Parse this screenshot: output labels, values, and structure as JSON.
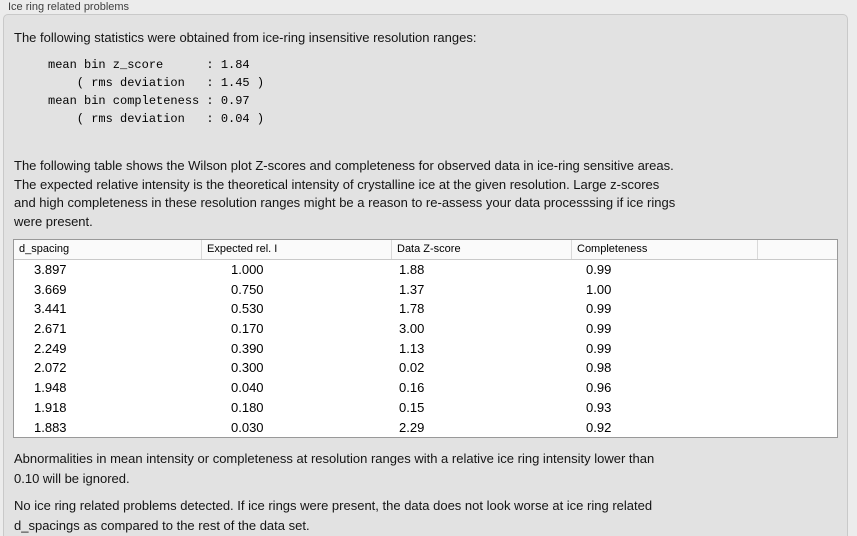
{
  "panel": {
    "title": "Ice ring related problems",
    "intro": "The following statistics were obtained from ice-ring insensitive resolution ranges:",
    "stats_block": "mean bin z_score      : 1.84\n    ( rms deviation   : 1.45 )\nmean bin completeness : 0.97\n    ( rms deviation   : 0.04 )",
    "description": "The following table shows the Wilson plot Z-scores and completeness for observed data in ice-ring sensitive areas.\nThe expected relative intensity is the theoretical intensity of crystalline ice at the given resolution. Large z-scores\nand high completeness in these resolution ranges might be a reason to re-assess your data processsing if ice rings\nwere present.",
    "ignore_note": "Abnormalities in mean intensity or completeness at resolution ranges with a relative ice ring intensity lower than\n0.10 will be ignored.",
    "conclusion": "No ice ring related problems detected. If ice rings were present, the data does not look worse at ice ring related\nd_spacings as compared to the rest of the data set."
  },
  "stats": {
    "mean_bin_z_score": "1.84",
    "z_score_rms_deviation": "1.45",
    "mean_bin_completeness": "0.97",
    "completeness_rms_deviation": "0.04"
  },
  "table": {
    "columns": [
      "d_spacing",
      "Expected rel. I",
      "Data Z-score",
      "Completeness"
    ],
    "rows": [
      [
        "3.897",
        "1.000",
        "1.88",
        "0.99"
      ],
      [
        "3.669",
        "0.750",
        "1.37",
        "1.00"
      ],
      [
        "3.441",
        "0.530",
        "1.78",
        "0.99"
      ],
      [
        "2.671",
        "0.170",
        "3.00",
        "0.99"
      ],
      [
        "2.249",
        "0.390",
        "1.13",
        "0.99"
      ],
      [
        "2.072",
        "0.300",
        "0.02",
        "0.98"
      ],
      [
        "1.948",
        "0.040",
        "0.16",
        "0.96"
      ],
      [
        "1.918",
        "0.180",
        "0.15",
        "0.93"
      ],
      [
        "1.883",
        "0.030",
        "2.29",
        "0.92"
      ]
    ]
  }
}
